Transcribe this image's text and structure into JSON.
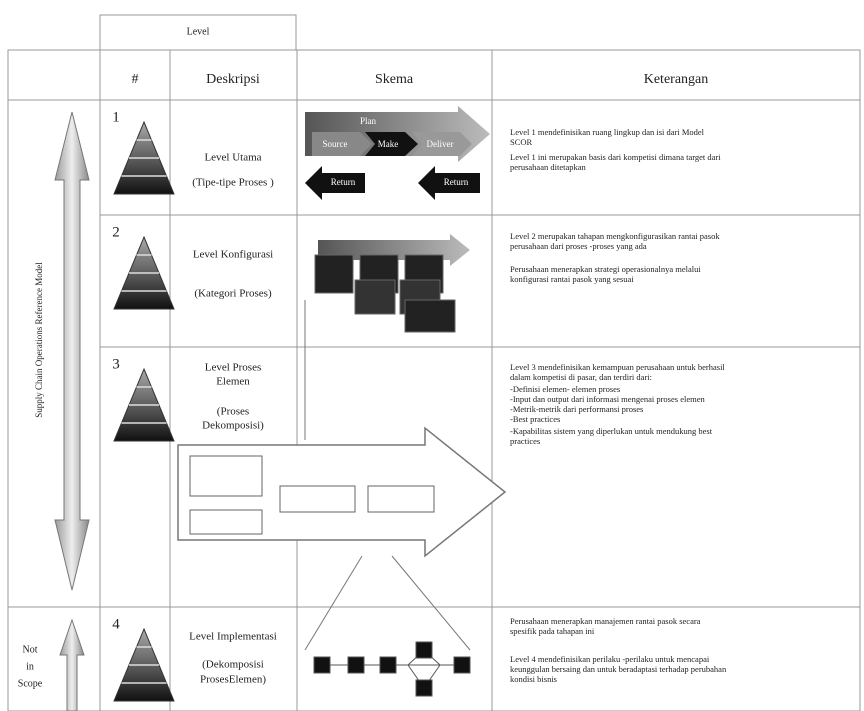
{
  "header": {
    "level": "Level",
    "columns": [
      "#",
      "Deskripsi",
      "Skema",
      "Keterangan"
    ]
  },
  "side": {
    "scope": "Supply Chain Operations Reference Model",
    "not_in_scope": [
      "Not",
      "in",
      "Scope"
    ]
  },
  "rows": [
    {
      "number": "1",
      "title": [
        "Level Utama"
      ],
      "subtitle": [
        "(Tipe-tipe Proses )"
      ],
      "schema": [
        "Plan",
        "Source",
        "Make",
        "Deliver",
        "Return",
        "Return"
      ],
      "notes": [
        "Level 1 mendefinisikan ruang lingkup dan isi dari Model",
        "SCOR",
        "Level 1 ini merupakan basis dari kompetisi dimana target dari",
        "perusahaan ditetapkan"
      ]
    },
    {
      "number": "2",
      "title": [
        "Level Konfigurasi"
      ],
      "subtitle": [
        "(Kategori Proses)"
      ],
      "schema": [],
      "notes": [
        "Level 2 merupakan tahapan mengkonfigurasikan rantai pasok",
        "perusahaan dari proses -proses yang ada",
        "Perusahaan menerapkan strategi operasionalnya melalui",
        "konfigurasi rantai pasok yang sesuai"
      ]
    },
    {
      "number": "3",
      "title": [
        "Level Proses",
        "Elemen"
      ],
      "subtitle": [
        "(Proses",
        "Dekomposisi)"
      ],
      "schema": [],
      "notes": [
        "Level 3 mendefinisikan kemampuan perusahaan untuk berhasil",
        "dalam kompetisi di pasar, dan terdiri dari:",
        "-Definisi elemen- elemen proses",
        "-Input dan output dari informasi mengenai proses   elemen",
        "-Metrik-metrik dari performansi proses",
        "-Best practices",
        "-Kapabilitas sistem yang diperlukan untuk mendukung best",
        "practices"
      ]
    },
    {
      "number": "4",
      "title": [
        "Level Implementasi"
      ],
      "subtitle": [
        "(Dekomposisi",
        "ProsesElemen)"
      ],
      "schema": [],
      "notes": [
        "Perusahaan menerapkan manajemen rantai pasok secara",
        "spesifik pada tahapan ini",
        "Level 4 mendefinisikan perilaku      -perilaku untuk mencapai",
        "keunggulan bersaing dan untuk beradaptasi terhadap perubahan",
        "kondisi bisnis"
      ]
    }
  ]
}
